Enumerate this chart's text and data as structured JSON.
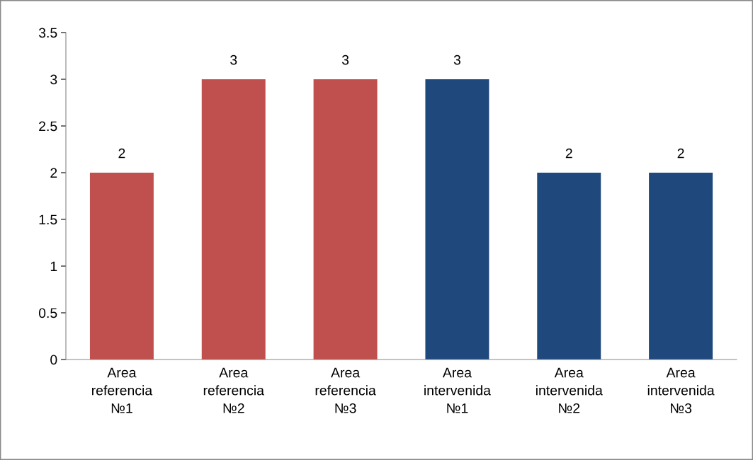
{
  "chart_data": {
    "type": "bar",
    "categories": [
      "Area\nreferencia\n№1",
      "Area\nreferencia\n№2",
      "Area\nreferencia\n№3",
      "Area\nintervenida\n№1",
      "Area\nintervenida\n№2",
      "Area\nintervenida\n№3"
    ],
    "values": [
      2,
      3,
      3,
      3,
      2,
      2
    ],
    "colors": [
      "#c0504d",
      "#c0504d",
      "#c0504d",
      "#1f497d",
      "#1f497d",
      "#1f497d"
    ],
    "ylim": [
      0,
      3.5
    ],
    "yticks": [
      0,
      0.5,
      1,
      1.5,
      2,
      2.5,
      3,
      3.5
    ],
    "data_labels": true,
    "grid": false
  }
}
